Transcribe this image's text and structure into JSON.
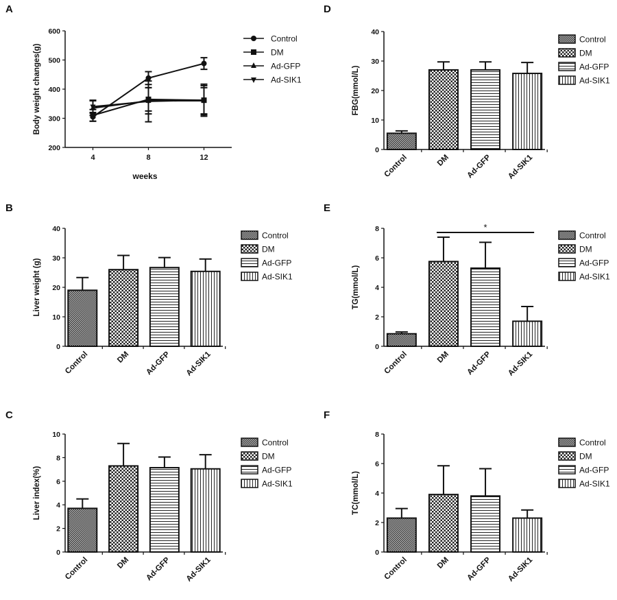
{
  "chart_data": [
    {
      "panel": "A",
      "type": "line",
      "xlabel": "weeks",
      "ylabel": "Body weight changes(g)",
      "x": [
        4,
        8,
        12
      ],
      "xticks": [
        "4",
        "8",
        "12"
      ],
      "ylim": [
        200,
        600
      ],
      "yticks": [
        200,
        300,
        400,
        500,
        600
      ],
      "series": [
        {
          "name": "Control",
          "marker": "circle",
          "values": [
            305,
            438,
            488
          ],
          "errors": [
            15,
            22,
            20
          ]
        },
        {
          "name": "DM",
          "marker": "square",
          "values": [
            310,
            365,
            362
          ],
          "errors": [
            20,
            40,
            50
          ]
        },
        {
          "name": "Ad-GFP",
          "marker": "triangle-up",
          "values": [
            335,
            360,
            360
          ],
          "errors": [
            25,
            45,
            45
          ]
        },
        {
          "name": "Ad-SIK1",
          "marker": "triangle-down",
          "values": [
            340,
            358,
            362
          ],
          "errors": [
            22,
            70,
            55
          ]
        }
      ]
    },
    {
      "panel": "B",
      "type": "bar",
      "ylabel": "Liver weight (g)",
      "categories": [
        "Control",
        "DM",
        "Ad-GFP",
        "Ad-SIK1"
      ],
      "values": [
        19,
        26,
        26.7,
        25.4
      ],
      "errors": [
        4.3,
        4.8,
        3.4,
        4.2
      ],
      "ylim": [
        0,
        40
      ],
      "yticks": [
        0,
        10,
        20,
        30,
        40
      ]
    },
    {
      "panel": "C",
      "type": "bar",
      "ylabel": "Liver index(%)",
      "categories": [
        "Control",
        "DM",
        "Ad-GFP",
        "Ad-SIK1"
      ],
      "values": [
        3.7,
        7.3,
        7.15,
        7.05
      ],
      "errors": [
        0.8,
        1.9,
        0.9,
        1.2
      ],
      "ylim": [
        0,
        10
      ],
      "yticks": [
        0,
        2,
        4,
        6,
        8,
        10
      ]
    },
    {
      "panel": "D",
      "type": "bar",
      "ylabel": "FBG(mmol/L)",
      "categories": [
        "Control",
        "DM",
        "Ad-GFP",
        "Ad-SIK1"
      ],
      "values": [
        5.5,
        27,
        27,
        25.8
      ],
      "errors": [
        0.8,
        2.7,
        2.7,
        3.7
      ],
      "ylim": [
        0,
        40
      ],
      "yticks": [
        0,
        10,
        20,
        30,
        40
      ]
    },
    {
      "panel": "E",
      "type": "bar",
      "ylabel": "TG(mmol/L)",
      "categories": [
        "Control",
        "DM",
        "Ad-GFP",
        "Ad-SIK1"
      ],
      "values": [
        0.85,
        5.75,
        5.3,
        1.7
      ],
      "errors": [
        0.12,
        1.65,
        1.75,
        1.0
      ],
      "ylim": [
        0,
        8
      ],
      "yticks": [
        0,
        2,
        4,
        6,
        8
      ],
      "significance": {
        "from": "DM",
        "to": "Ad-SIK1",
        "label": "*"
      }
    },
    {
      "panel": "F",
      "type": "bar",
      "ylabel": "TC(mmol/L)",
      "categories": [
        "Control",
        "DM",
        "Ad-GFP",
        "Ad-SIK1"
      ],
      "values": [
        2.3,
        3.9,
        3.8,
        2.3
      ],
      "errors": [
        0.65,
        1.95,
        1.85,
        0.55
      ],
      "ylim": [
        0,
        8
      ],
      "yticks": [
        0,
        2,
        4,
        6,
        8
      ]
    }
  ],
  "legend_patterns": {
    "Control": "dense-crosshatch",
    "DM": "checker",
    "Ad-GFP": "horizontal-lines",
    "Ad-SIK1": "vertical-lines"
  },
  "legend_placement": "right",
  "colors": {
    "ink": "#111111",
    "fill_dark": "#555555"
  }
}
